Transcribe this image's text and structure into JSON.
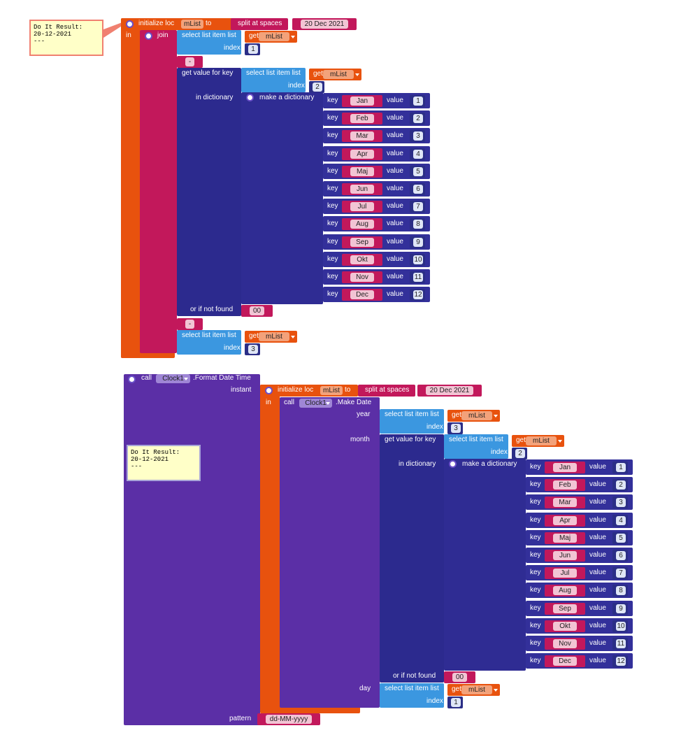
{
  "labels": {
    "initialize": "initialize loc",
    "to": "to",
    "in": "in",
    "split": "split at spaces",
    "join": "join",
    "select": "select list item  list",
    "get": "get",
    "index": "index",
    "get_value": "get value for key",
    "in_dictionary": "in dictionary",
    "make_dict": "make a dictionary",
    "key": "key",
    "value": "value",
    "or_not_found": "or if not found",
    "call": "call",
    "format": ".Format Date Time",
    "make_date": ".Make Date",
    "instant": "instant",
    "pattern": "pattern",
    "year": "year",
    "month": "month",
    "day": "day"
  },
  "variable": "mList",
  "date_text": "20 Dec 2021",
  "separator": "-",
  "not_found": "00",
  "component": "Clock1",
  "pattern_text": "dd-MM-yyyy",
  "indices": {
    "day": 1,
    "month": 2,
    "year": 3
  },
  "months": [
    {
      "key": "Jan",
      "value": 1
    },
    {
      "key": "Feb",
      "value": 2
    },
    {
      "key": "Mar",
      "value": 3
    },
    {
      "key": "Apr",
      "value": 4
    },
    {
      "key": "Maj",
      "value": 5
    },
    {
      "key": "Jun",
      "value": 6
    },
    {
      "key": "Jul",
      "value": 7
    },
    {
      "key": "Aug",
      "value": 8
    },
    {
      "key": "Sep",
      "value": 9
    },
    {
      "key": "Okt",
      "value": 10
    },
    {
      "key": "Nov",
      "value": 11
    },
    {
      "key": "Dec",
      "value": 12
    }
  ],
  "comments": [
    [
      "Do It Result:",
      "20-12-2021",
      "---"
    ],
    [
      "Do It Result:",
      "20-12-2021",
      "---"
    ]
  ]
}
